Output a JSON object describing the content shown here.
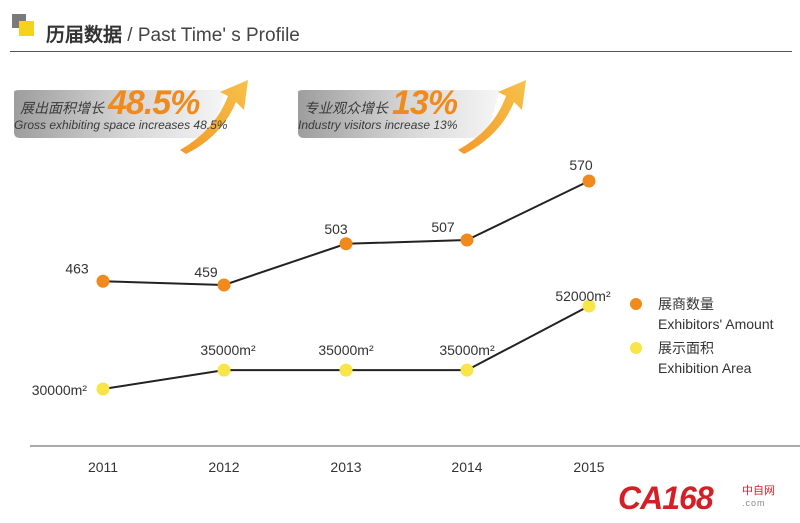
{
  "header": {
    "title_zh": "历届数据",
    "title_en": " / Past Time' s Profile"
  },
  "banners": [
    {
      "zh": "展出面积增长",
      "big": "48.5%",
      "en": "Gross exhibiting space increases 48.5%"
    },
    {
      "zh": "专业观众增长",
      "big": "13%",
      "en": "Industry visitors increase 13%"
    }
  ],
  "legend": [
    {
      "zh": "展商数量",
      "en": "Exhibitors' Amount",
      "color": "#f08a1c"
    },
    {
      "zh": "展示面积",
      "en": "Exhibition Area",
      "color": "#f9e548"
    }
  ],
  "watermark": {
    "main": "CA168",
    "zh": "中自网",
    "url": ".com"
  },
  "chart_data": {
    "type": "line",
    "categories": [
      "2011",
      "2012",
      "2013",
      "2014",
      "2015"
    ],
    "series": [
      {
        "name": "展商数量 Exhibitors' Amount",
        "color": "#f08a1c",
        "values": [
          463,
          459,
          503,
          507,
          570
        ],
        "labels": [
          "463",
          "459",
          "503",
          "507",
          "570"
        ]
      },
      {
        "name": "展示面积 Exhibition Area",
        "color": "#f9e548",
        "values": [
          30000,
          35000,
          35000,
          35000,
          52000
        ],
        "labels": [
          "30000m²",
          "35000m²",
          "35000m²",
          "35000m²",
          "52000m²"
        ]
      }
    ],
    "legend_position": "right",
    "grid": false
  }
}
